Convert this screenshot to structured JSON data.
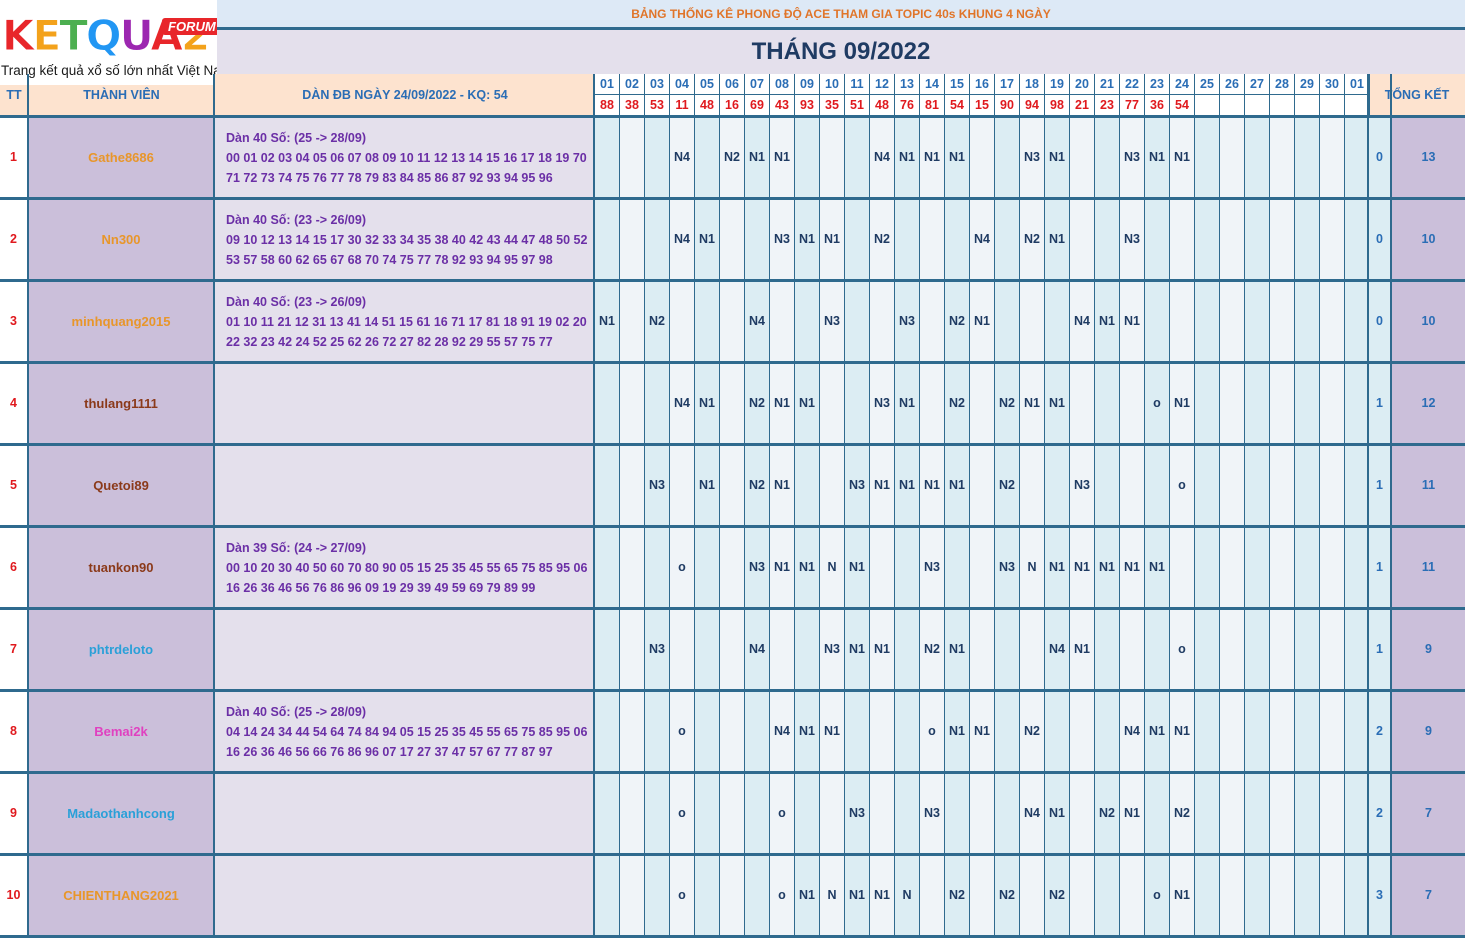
{
  "logo": {
    "text": "KETQUA2",
    "forum": "FORUM",
    "tagline": "Trang kết quả xổ số lớn nhất Việt Nam"
  },
  "banner": "BẢNG THỐNG KÊ PHONG ĐỘ ACE THAM GIA TOPIC 40s KHUNG 4 NGÀY",
  "month_title": "THÁNG 09/2022",
  "headers": {
    "tt": "TT",
    "member": "THÀNH VIÊN",
    "dan": "DÀN ĐB NGÀY 24/09/2022 - KQ: 54",
    "total": "TỔNG KẾT"
  },
  "days": [
    "01",
    "02",
    "03",
    "04",
    "05",
    "06",
    "07",
    "08",
    "09",
    "10",
    "11",
    "12",
    "13",
    "14",
    "15",
    "16",
    "17",
    "18",
    "19",
    "20",
    "21",
    "22",
    "23",
    "24",
    "25",
    "26",
    "27",
    "28",
    "29",
    "30",
    "01"
  ],
  "results": [
    "88",
    "38",
    "53",
    "11",
    "48",
    "16",
    "69",
    "43",
    "93",
    "35",
    "51",
    "48",
    "76",
    "81",
    "54",
    "15",
    "90",
    "94",
    "98",
    "21",
    "23",
    "77",
    "36",
    "54",
    "",
    "",
    "",
    "",
    "",
    "",
    ""
  ],
  "colors": {
    "accent": "#2f6a8e",
    "orange": "#e8962a",
    "brown": "#8b3a1a",
    "blue": "#2aa0d8",
    "pink": "#e040c0",
    "red": "#e0191e",
    "purple": "#6b2fa6"
  },
  "rows": [
    {
      "tt": "1",
      "name": "Gathe8686",
      "name_color": "#e8962a",
      "dan": [
        "Dàn 40 Số: (25 -> 28/09)",
        "00 01 02 03 04 05 06 07 08 09 10 11 12 13 14 15 16 17 18 19 70",
        "71 72 73 74 75 76 77 78 79 83 84 85 86 87 92 93 94 95 96"
      ],
      "cells": [
        "",
        "",
        "",
        "N4",
        "",
        "N2",
        "N1",
        "N1",
        "",
        "",
        "",
        "N4",
        "N1",
        "N1",
        "N1",
        "",
        "",
        "N3",
        "N1",
        "",
        "",
        "N3",
        "N1",
        "N1",
        "",
        "",
        "",
        "",
        "",
        "",
        ""
      ],
      "sum1": "0",
      "sum2": "13"
    },
    {
      "tt": "2",
      "name": "Nn300",
      "name_color": "#e8962a",
      "dan": [
        "Dàn 40 Số: (23 -> 26/09)",
        "09 10 12 13 14 15 17 30 32 33 34 35 38 40 42 43 44 47 48 50 52",
        "53 57 58 60 62 65 67 68 70 74 75 77 78 92 93 94 95 97 98"
      ],
      "cells": [
        "",
        "",
        "",
        "N4",
        "N1",
        "",
        "",
        "N3",
        "N1",
        "N1",
        "",
        "N2",
        "",
        "",
        "",
        "N4",
        "",
        "N2",
        "N1",
        "",
        "",
        "N3",
        "",
        "",
        "",
        "",
        "",
        "",
        "",
        "",
        ""
      ],
      "sum1": "0",
      "sum2": "10"
    },
    {
      "tt": "3",
      "name": "minhquang2015",
      "name_color": "#e8962a",
      "dan": [
        "Dàn 40 Số: (23 -> 26/09)",
        "01 10 11 21 12 31 13 41 14 51 15 61 16 71 17 81 18 91 19 02 20",
        "22 32 23 42 24 52 25 62 26 72 27 82 28 92 29 55 57 75 77"
      ],
      "cells": [
        "N1",
        "",
        "N2",
        "",
        "",
        "",
        "N4",
        "",
        "",
        "N3",
        "",
        "",
        "N3",
        "",
        "N2",
        "N1",
        "",
        "",
        "",
        "N4",
        "N1",
        "N1",
        "",
        "",
        "",
        "",
        "",
        "",
        "",
        "",
        ""
      ],
      "sum1": "0",
      "sum2": "10"
    },
    {
      "tt": "4",
      "name": "thulang1111",
      "name_color": "#8b3a1a",
      "dan": [
        "",
        "",
        ""
      ],
      "cells": [
        "",
        "",
        "",
        "N4",
        "N1",
        "",
        "N2",
        "N1",
        "N1",
        "",
        "",
        "N3",
        "N1",
        "",
        "N2",
        "",
        "N2",
        "N1",
        "N1",
        "",
        "",
        "",
        "o",
        "N1",
        "",
        "",
        "",
        "",
        "",
        "",
        ""
      ],
      "sum1": "1",
      "sum2": "12"
    },
    {
      "tt": "5",
      "name": "Quetoi89",
      "name_color": "#8b3a1a",
      "dan": [
        "",
        "",
        ""
      ],
      "cells": [
        "",
        "",
        "N3",
        "",
        "N1",
        "",
        "N2",
        "N1",
        "",
        "",
        "N3",
        "N1",
        "N1",
        "N1",
        "N1",
        "",
        "N2",
        "",
        "",
        "N3",
        "",
        "",
        "",
        "o",
        "",
        "",
        "",
        "",
        "",
        "",
        ""
      ],
      "sum1": "1",
      "sum2": "11"
    },
    {
      "tt": "6",
      "name": "tuankon90",
      "name_color": "#8b3a1a",
      "dan": [
        "Dàn 39 Số: (24 -> 27/09)",
        "00 10 20 30 40 50 60 70 80 90 05 15 25 35 45 55 65 75 85 95 06",
        "16 26 36 46 56 76 86 96 09 19 29 39 49 59 69 79 89 99"
      ],
      "cells": [
        "",
        "",
        "",
        "o",
        "",
        "",
        "N3",
        "N1",
        "N1",
        "N",
        "N1",
        "",
        "",
        "N3",
        "",
        "",
        "N3",
        "N",
        "N1",
        "N1",
        "N1",
        "N1",
        "N1",
        "",
        "",
        "",
        "",
        "",
        "",
        "",
        ""
      ],
      "sum1": "1",
      "sum2": "11"
    },
    {
      "tt": "7",
      "name": "phtrdeloto",
      "name_color": "#2aa0d8",
      "dan": [
        "",
        "",
        ""
      ],
      "cells": [
        "",
        "",
        "N3",
        "",
        "",
        "",
        "N4",
        "",
        "",
        "N3",
        "N1",
        "N1",
        "",
        "N2",
        "N1",
        "",
        "",
        "",
        "N4",
        "N1",
        "",
        "",
        "",
        "o",
        "",
        "",
        "",
        "",
        "",
        "",
        ""
      ],
      "sum1": "1",
      "sum2": "9"
    },
    {
      "tt": "8",
      "name": "Bemai2k",
      "name_color": "#e040c0",
      "dan": [
        "Dàn 40 Số: (25 -> 28/09)",
        "04 14 24 34 44 54 64 74 84 94 05 15 25 35 45 55 65 75 85 95 06",
        "16 26 36 46 56 66 76 86 96 07 17 27 37 47 57 67 77 87 97"
      ],
      "cells": [
        "",
        "",
        "",
        "o",
        "",
        "",
        "",
        "N4",
        "N1",
        "N1",
        "",
        "",
        "",
        "o",
        "N1",
        "N1",
        "",
        "N2",
        "",
        "",
        "",
        "N4",
        "N1",
        "N1",
        "",
        "",
        "",
        "",
        "",
        "",
        ""
      ],
      "sum1": "2",
      "sum2": "9"
    },
    {
      "tt": "9",
      "name": "Madaothanhcong",
      "name_color": "#2aa0d8",
      "dan": [
        "",
        "",
        ""
      ],
      "cells": [
        "",
        "",
        "",
        "o",
        "",
        "",
        "",
        "o",
        "",
        "",
        "N3",
        "",
        "",
        "N3",
        "",
        "",
        "",
        "N4",
        "N1",
        "",
        "N2",
        "N1",
        "",
        "N2",
        "",
        "",
        "",
        "",
        "",
        "",
        ""
      ],
      "sum1": "2",
      "sum2": "7"
    },
    {
      "tt": "10",
      "name": "CHIENTHANG2021",
      "name_color": "#e8962a",
      "dan": [
        "",
        "",
        ""
      ],
      "cells": [
        "",
        "",
        "",
        "o",
        "",
        "",
        "",
        "o",
        "N1",
        "N",
        "N1",
        "N1",
        "N",
        "",
        "N2",
        "",
        "N2",
        "",
        "N2",
        "",
        "",
        "",
        "o",
        "N1",
        "",
        "",
        "",
        "",
        "",
        "",
        ""
      ],
      "sum1": "3",
      "sum2": "7"
    }
  ]
}
